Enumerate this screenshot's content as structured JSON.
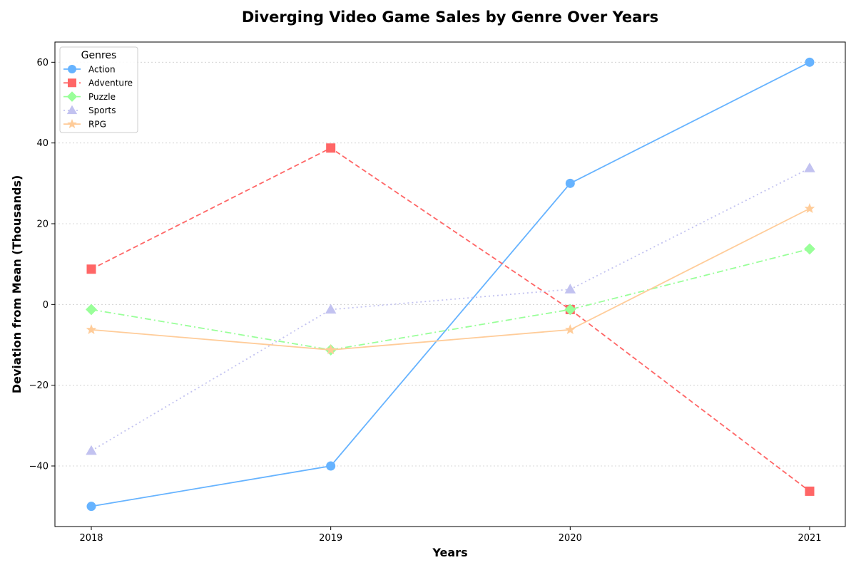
{
  "chart_data": {
    "type": "line",
    "title": "Diverging Video Game Sales by Genre Over Years",
    "xlabel": "Years",
    "ylabel": "Deviation from Mean (Thousands)",
    "categories": [
      "2018",
      "2019",
      "2020",
      "2021"
    ],
    "ylim": [
      -55,
      65
    ],
    "yticks": [
      -40,
      -20,
      0,
      20,
      40,
      60
    ],
    "ytick_labels": [
      "−40",
      "−20",
      "0",
      "20",
      "40",
      "60"
    ],
    "grid": "horizontal dotted",
    "legend": {
      "title": "Genres",
      "placement": "top-left"
    },
    "series": [
      {
        "name": "Action",
        "values": [
          -50,
          -40,
          30,
          60
        ],
        "color": "#66b3ff",
        "linestyle": "solid",
        "marker": "circle"
      },
      {
        "name": "Adventure",
        "values": [
          8.75,
          38.75,
          -1.25,
          -46.25
        ],
        "color": "#ff6666",
        "linestyle": "dashed",
        "marker": "square"
      },
      {
        "name": "Puzzle",
        "values": [
          -1.25,
          -11.25,
          -1.25,
          13.75
        ],
        "color": "#99ff99",
        "linestyle": "dashdot",
        "marker": "diamond"
      },
      {
        "name": "Sports",
        "values": [
          -36.25,
          -1.25,
          3.75,
          33.75
        ],
        "color": "#c2c2f0",
        "linestyle": "dotted",
        "marker": "triangle"
      },
      {
        "name": "RPG",
        "values": [
          -6.25,
          -11.25,
          -6.25,
          23.75
        ],
        "color": "#ffcc99",
        "linestyle": "solid",
        "marker": "star"
      }
    ]
  }
}
